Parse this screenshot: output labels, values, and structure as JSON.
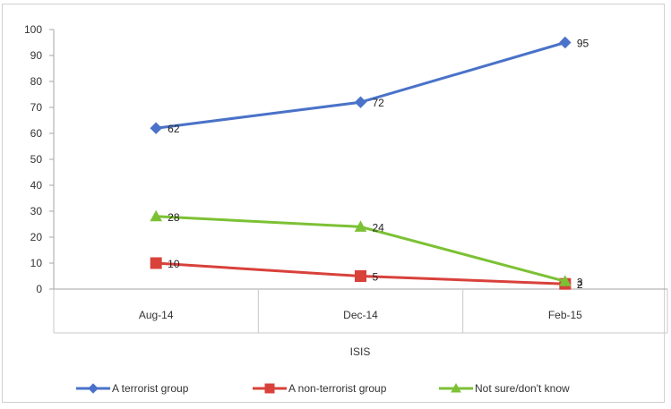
{
  "chart_data": {
    "type": "line",
    "categories": [
      "Aug-14",
      "Dec-14",
      "Feb-15"
    ],
    "xlabel": "ISIS",
    "ylim": [
      0,
      100
    ],
    "yticks": [
      0,
      10,
      20,
      30,
      40,
      50,
      60,
      70,
      80,
      90,
      100
    ],
    "grid": false,
    "legend_position": "bottom",
    "series": [
      {
        "name": "A terrorist group",
        "values": [
          62,
          72,
          95
        ],
        "labels": [
          "62",
          "72",
          "95"
        ],
        "color": "#4a72c8",
        "marker": "diamond"
      },
      {
        "name": "A non-terrorist group",
        "values": [
          10,
          5,
          2
        ],
        "labels": [
          "10",
          "5",
          "2"
        ],
        "color": "#d9413b",
        "marker": "square"
      },
      {
        "name": "Not sure/don't know",
        "values": [
          28,
          24,
          3
        ],
        "labels": [
          "28",
          "24",
          "3"
        ],
        "color": "#7cc134",
        "marker": "triangle"
      }
    ]
  }
}
